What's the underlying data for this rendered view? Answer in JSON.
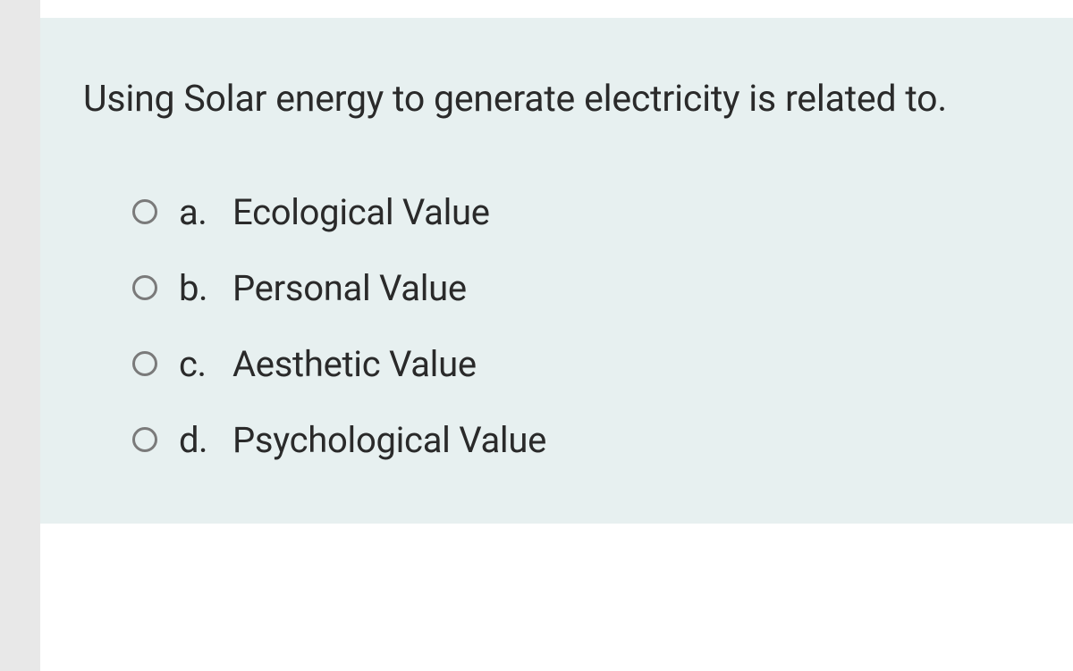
{
  "question": {
    "text": "Using Solar energy to generate electricity is related to.",
    "options": [
      {
        "letter": "a.",
        "label": "Ecological Value"
      },
      {
        "letter": "b.",
        "label": "Personal Value"
      },
      {
        "letter": "c.",
        "label": "Aesthetic Value"
      },
      {
        "letter": "d.",
        "label": "Psychological Value"
      }
    ]
  },
  "colors": {
    "card_bg": "#e7f0f0",
    "gutter_bg": "#e8e8e8",
    "text": "#2a2a2a",
    "radio_border": "#7a7a7a"
  }
}
